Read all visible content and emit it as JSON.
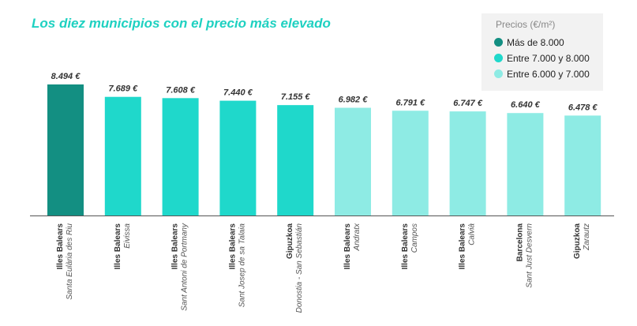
{
  "chart_data": {
    "type": "bar",
    "title": "Los diez municipios con el precio más elevado",
    "xlabel": "",
    "ylabel": "",
    "ylim": [
      0,
      8800
    ],
    "legend": {
      "title": "Precios (€/m²)",
      "position": "top-right",
      "items": [
        {
          "label": "Más de 8.000",
          "color": "#138f82"
        },
        {
          "label": "Entre 7.000 y 8.000",
          "color": "#1fd8cb"
        },
        {
          "label": "Entre 6.000 y 7.000",
          "color": "#8eebe4"
        }
      ]
    },
    "bars": [
      {
        "region": "Illes Balears",
        "municipio": "Santa Eulària des Riu",
        "value": 8494,
        "label": "8.494 €",
        "color": "#138f82"
      },
      {
        "region": "Illes Balears",
        "municipio": "Eivissa",
        "value": 7689,
        "label": "7.689 €",
        "color": "#1fd8cb"
      },
      {
        "region": "Illes Balears",
        "municipio": "Sant Antoni de Portmany",
        "value": 7608,
        "label": "7.608 €",
        "color": "#1fd8cb"
      },
      {
        "region": "Illes Balears",
        "municipio": "Sant Josep de sa Talaia",
        "value": 7440,
        "label": "7.440 €",
        "color": "#1fd8cb"
      },
      {
        "region": "Gipuzkoa",
        "municipio": "Donostia - San Sebastián",
        "value": 7155,
        "label": "7.155 €",
        "color": "#1fd8cb"
      },
      {
        "region": "Illes Balears",
        "municipio": "Andratx",
        "value": 6982,
        "label": "6.982 €",
        "color": "#8eebe4"
      },
      {
        "region": "Illes Balears",
        "municipio": "Campos",
        "value": 6791,
        "label": "6.791 €",
        "color": "#8eebe4"
      },
      {
        "region": "Illes Balears",
        "municipio": "Calvià",
        "value": 6747,
        "label": "6.747 €",
        "color": "#8eebe4"
      },
      {
        "region": "Barcelona",
        "municipio": "Sant Just Desvern",
        "value": 6640,
        "label": "6.640 €",
        "color": "#8eebe4"
      },
      {
        "region": "Gipuzkoa",
        "municipio": "Zarautz",
        "value": 6478,
        "label": "6.478 €",
        "color": "#8eebe4"
      }
    ]
  }
}
